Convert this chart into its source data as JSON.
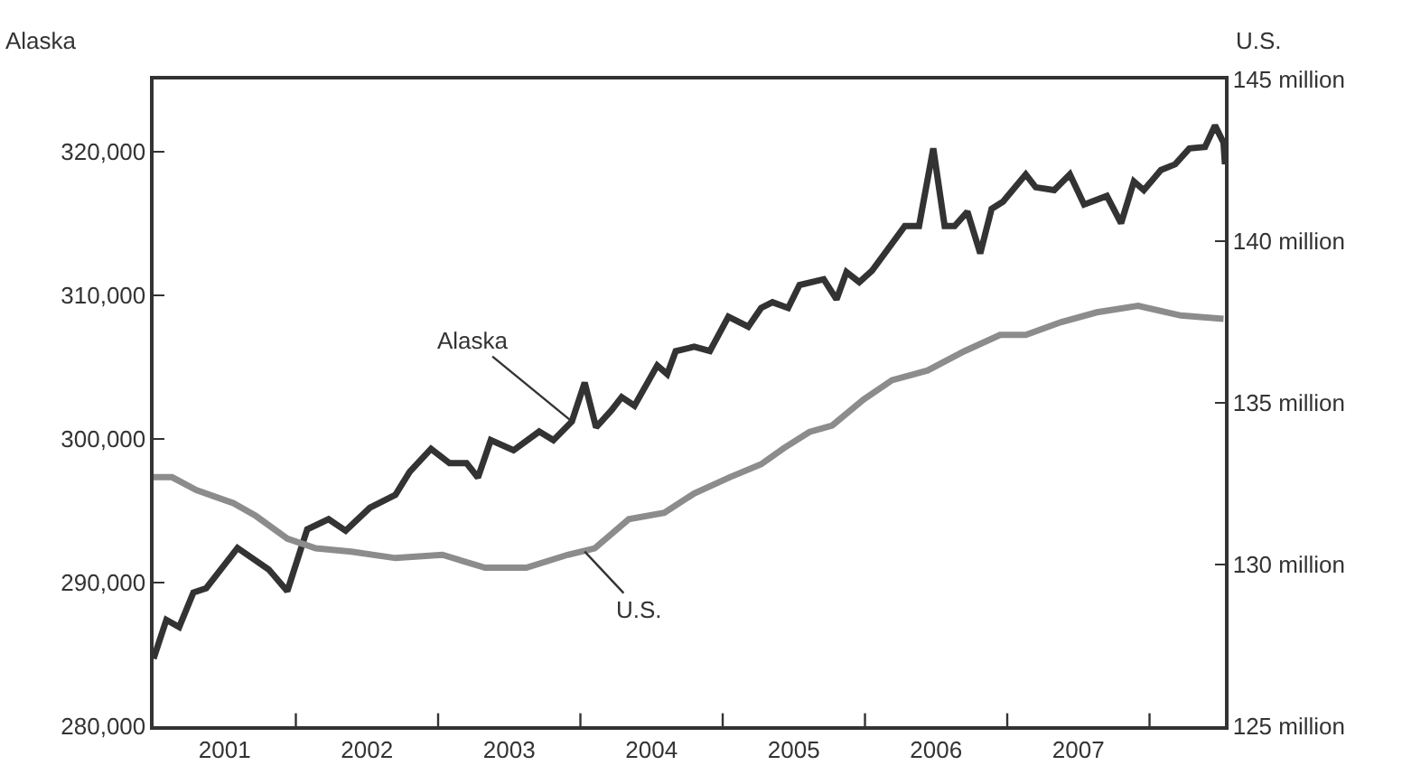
{
  "chart_data": {
    "type": "line",
    "ylabel": "Alaska",
    "y2label": "U.S.",
    "xlim": [
      2001.0,
      2008.53
    ],
    "ylim": [
      280000,
      325000
    ],
    "y2lim": [
      125,
      145
    ],
    "xticks": [
      {
        "value": 2001.5,
        "label": "2001"
      },
      {
        "value": 2002.5,
        "label": "2002"
      },
      {
        "value": 2003.5,
        "label": "2003"
      },
      {
        "value": 2004.5,
        "label": "2004"
      },
      {
        "value": 2005.5,
        "label": "2005"
      },
      {
        "value": 2006.5,
        "label": "2006"
      },
      {
        "value": 2007.5,
        "label": "2007"
      },
      {
        "value": 2002,
        "label": null
      },
      {
        "value": 2003,
        "label": null
      },
      {
        "value": 2004,
        "label": null
      },
      {
        "value": 2005,
        "label": null
      },
      {
        "value": 2006,
        "label": null
      },
      {
        "value": 2007,
        "label": null
      },
      {
        "value": 2008,
        "label": null
      }
    ],
    "yticks": [
      {
        "value": 280000,
        "label": "280,000"
      },
      {
        "value": 290000,
        "label": "290,000"
      },
      {
        "value": 300000,
        "label": "300,000"
      },
      {
        "value": 310000,
        "label": "310,000"
      },
      {
        "value": 320000,
        "label": "320,000"
      }
    ],
    "y2ticks": [
      {
        "value": 125,
        "label": "125 million"
      },
      {
        "value": 130,
        "label": "130 million"
      },
      {
        "value": 135,
        "label": "135 million"
      },
      {
        "value": 140,
        "label": "140 million"
      },
      {
        "value": 145,
        "label": "145 million"
      }
    ],
    "marker": "none",
    "line_style": "solid",
    "series": [
      {
        "color": "#333333",
        "x": [
          2001.0,
          2001.09,
          2001.18,
          2001.28,
          2001.37,
          2001.59,
          2001.81,
          2001.94,
          2002.08,
          2002.23,
          2002.35,
          2002.52,
          2002.7,
          2002.8,
          2002.95,
          2003.08,
          2003.2,
          2003.28,
          2003.37,
          2003.53,
          2003.71,
          2003.81,
          2003.94,
          2004.03,
          2004.11,
          2004.22,
          2004.29,
          2004.38,
          2004.54,
          2004.61,
          2004.67,
          2004.8,
          2004.91,
          2005.04,
          2005.18,
          2005.27,
          2005.35,
          2005.46,
          2005.54,
          2005.71,
          2005.8,
          2005.87,
          2005.96,
          2006.05,
          2006.28,
          2006.38,
          2006.48,
          2006.56,
          2006.63,
          2006.72,
          2006.81,
          2006.89,
          2006.97,
          2007.13,
          2007.2,
          2007.33,
          2007.44,
          2007.54,
          2007.7,
          2007.8,
          2007.89,
          2007.96,
          2008.08,
          2008.18,
          2008.28,
          2008.39,
          2008.46,
          2008.52,
          2008.53
        ],
        "values": [
          284700,
          287400,
          286900,
          289300,
          289600,
          292400,
          290900,
          289400,
          293700,
          294400,
          293600,
          295200,
          296100,
          297700,
          299300,
          298300,
          298300,
          297300,
          299900,
          299200,
          300500,
          299900,
          301200,
          303900,
          300800,
          302000,
          302900,
          302300,
          305100,
          304500,
          306100,
          306400,
          306100,
          308500,
          307800,
          309100,
          309500,
          309100,
          310700,
          311100,
          309700,
          311600,
          310900,
          311700,
          314800,
          314800,
          320200,
          314800,
          314800,
          315800,
          312900,
          316000,
          316500,
          318400,
          317500,
          317300,
          318400,
          316300,
          316900,
          315000,
          317900,
          317300,
          318700,
          319100,
          320200,
          320300,
          321800,
          320600,
          319100
        ]
      },
      {
        "color": "#8c8c8c",
        "axis": "y2",
        "x": [
          2001.0,
          2001.13,
          2001.3,
          2001.56,
          2001.72,
          2001.94,
          2002.14,
          2002.39,
          2002.7,
          2003.03,
          2003.33,
          2003.62,
          2003.91,
          2004.1,
          2004.34,
          2004.59,
          2004.8,
          2005.05,
          2005.27,
          2005.43,
          2005.61,
          2005.77,
          2005.99,
          2006.19,
          2006.44,
          2006.7,
          2006.95,
          2007.13,
          2007.38,
          2007.63,
          2007.92,
          2008.22,
          2008.52
        ],
        "values": [
          132.7,
          132.7,
          132.3,
          131.9,
          131.5,
          130.8,
          130.5,
          130.4,
          130.2,
          130.3,
          129.9,
          129.9,
          130.3,
          130.5,
          131.4,
          131.6,
          132.2,
          132.7,
          133.1,
          133.6,
          134.1,
          134.3,
          135.1,
          135.7,
          136.0,
          136.6,
          137.1,
          137.1,
          137.5,
          137.8,
          138.0,
          137.7,
          137.6
        ]
      }
    ],
    "annotations": [
      {
        "text": "Alaska",
        "x": 2003.94,
        "y": 301200
      },
      {
        "text": "U.S.",
        "x": 2004.03,
        "y": 292150
      }
    ]
  }
}
